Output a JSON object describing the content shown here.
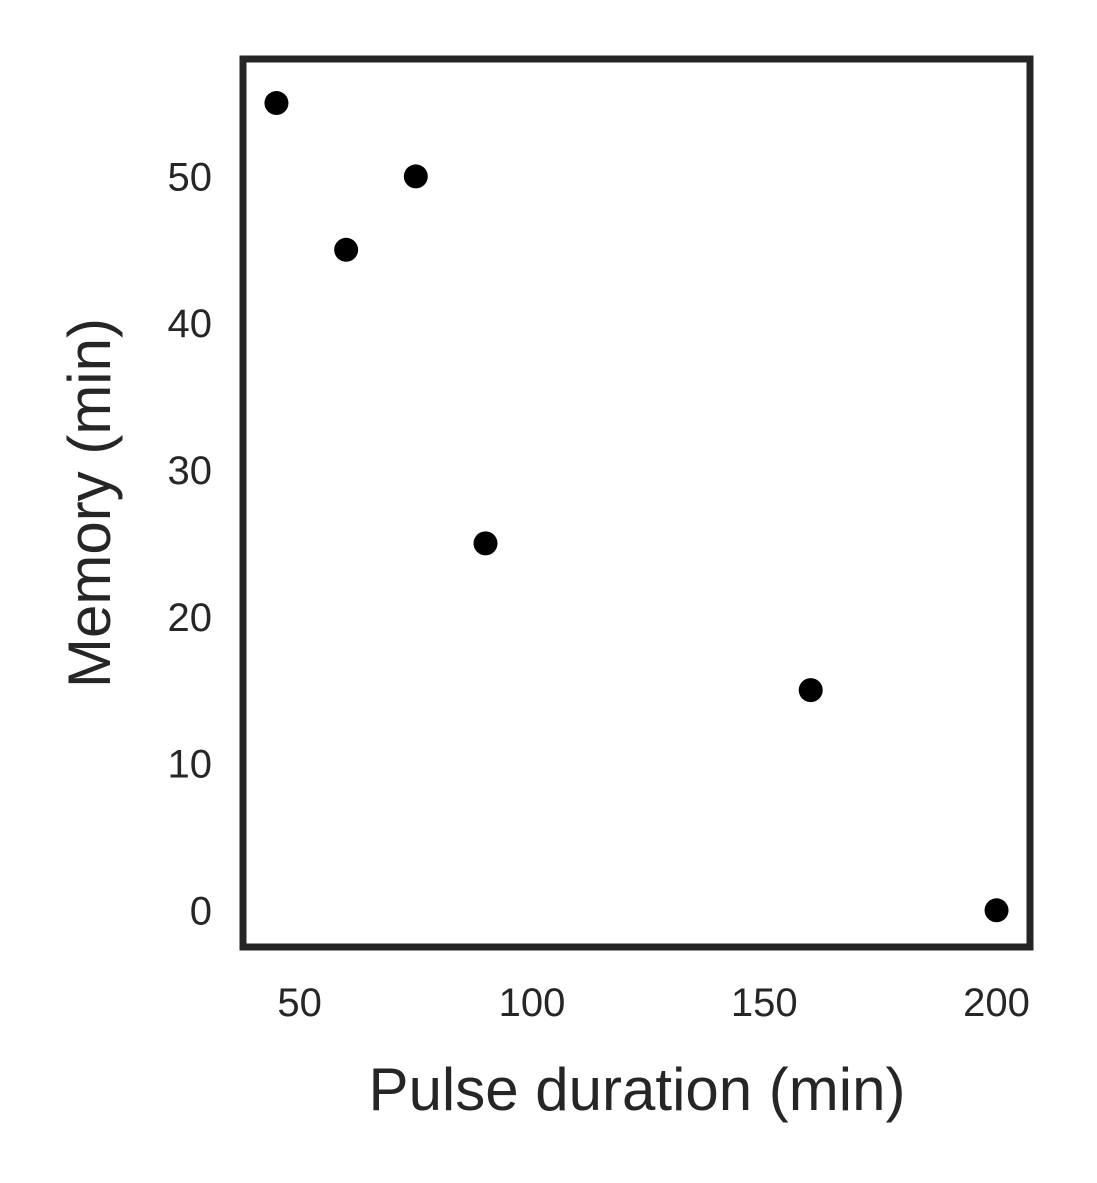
{
  "chart_data": {
    "type": "scatter",
    "title": "",
    "xlabel": "Pulse duration (min)",
    "ylabel": "Memory (min)",
    "xlim": [
      37.8,
      207.2
    ],
    "ylim": [
      -2.5,
      58.0
    ],
    "xticks": [
      50,
      100,
      150,
      200
    ],
    "yticks": [
      0,
      10,
      20,
      30,
      40,
      50
    ],
    "grid": false,
    "legend": "none",
    "marker_color": "#000000",
    "axis_color": "#262626",
    "points": [
      {
        "x": 45,
        "y": 55
      },
      {
        "x": 60,
        "y": 45
      },
      {
        "x": 75,
        "y": 50
      },
      {
        "x": 90,
        "y": 25
      },
      {
        "x": 160,
        "y": 15
      },
      {
        "x": 200,
        "y": 0
      }
    ]
  }
}
